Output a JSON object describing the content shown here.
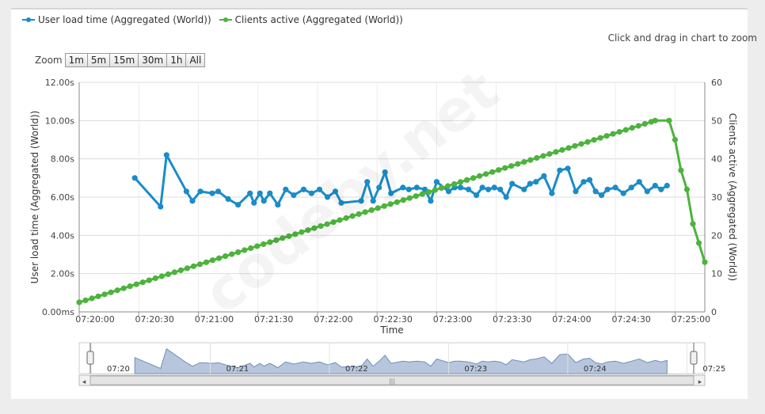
{
  "legend": [
    {
      "label": "User load time (Aggregated (World))",
      "color": "#1a8cc8"
    },
    {
      "label": "Clients active (Aggregated (World))",
      "color": "#4db33d"
    }
  ],
  "zoom_hint": "Click and drag in chart to zoom",
  "zoom": {
    "label": "Zoom",
    "buttons": [
      "1m",
      "5m",
      "15m",
      "30m",
      "1h",
      "All"
    ]
  },
  "watermark": "codeby.net",
  "chart_data": {
    "type": "line",
    "xlabel": "Time",
    "x_ticks": [
      "07:20:00",
      "07:20:30",
      "07:21:00",
      "07:21:30",
      "07:22:00",
      "07:22:30",
      "07:23:00",
      "07:23:30",
      "07:24:00",
      "07:24:30",
      "07:25:00"
    ],
    "y_left": {
      "label": "User load time (Aggregated (World))",
      "ticks": [
        "0.00ms",
        "2.00s",
        "4.00s",
        "6.00s",
        "8.00s",
        "10.00s",
        "12.00s"
      ],
      "range": [
        0,
        12
      ]
    },
    "y_right": {
      "label": "Clients active (Aggregated (World))",
      "ticks": [
        "0",
        "10",
        "20",
        "30",
        "40",
        "50",
        "60"
      ],
      "range": [
        0,
        60
      ]
    },
    "x_range_seconds": [
      0,
      315
    ],
    "series": [
      {
        "name": "User load time (Aggregated (World))",
        "axis": "left",
        "color": "#1a8cc8",
        "x": [
          28,
          41,
          44,
          54,
          57,
          61,
          67,
          70,
          75,
          80,
          86,
          88,
          91,
          93,
          96,
          100,
          104,
          108,
          113,
          117,
          121,
          125,
          129,
          132,
          142,
          145,
          148,
          151,
          154,
          157,
          163,
          166,
          170,
          174,
          177,
          180,
          186,
          189,
          192,
          196,
          200,
          203,
          206,
          209,
          212,
          215,
          218,
          224,
          227,
          230,
          234,
          238,
          242,
          246,
          250,
          254,
          257,
          260,
          263,
          266,
          270,
          274,
          278,
          282,
          286,
          290,
          293,
          296
        ],
        "y": [
          7.0,
          5.5,
          8.2,
          6.3,
          5.8,
          6.3,
          6.2,
          6.3,
          5.9,
          5.6,
          6.2,
          5.7,
          6.2,
          5.8,
          6.2,
          5.6,
          6.4,
          6.1,
          6.4,
          6.2,
          6.4,
          6.0,
          6.3,
          5.7,
          5.8,
          6.8,
          5.8,
          6.5,
          7.3,
          6.2,
          6.5,
          6.4,
          6.5,
          6.4,
          5.8,
          6.8,
          6.3,
          6.5,
          6.5,
          6.4,
          6.1,
          6.5,
          6.4,
          6.5,
          6.4,
          6.0,
          6.7,
          6.4,
          6.7,
          6.8,
          7.1,
          6.2,
          7.4,
          7.5,
          6.3,
          6.8,
          6.9,
          6.3,
          6.1,
          6.4,
          6.5,
          6.2,
          6.5,
          6.8,
          6.3,
          6.6,
          6.4,
          6.6
        ]
      },
      {
        "name": "Clients active (Aggregated (World))",
        "axis": "right",
        "color": "#4db33d",
        "x": [
          0,
          290,
          297,
          300,
          303,
          306,
          309,
          312,
          315
        ],
        "y": [
          2.5,
          50.0,
          50.0,
          45.0,
          37.0,
          32.0,
          23.0,
          18.0,
          13.0
        ]
      }
    ]
  },
  "navigator": {
    "labels": [
      "07:20",
      "07:21",
      "07:22",
      "07:23",
      "07:24",
      "07:25"
    ],
    "scroll_grip": "|||"
  }
}
